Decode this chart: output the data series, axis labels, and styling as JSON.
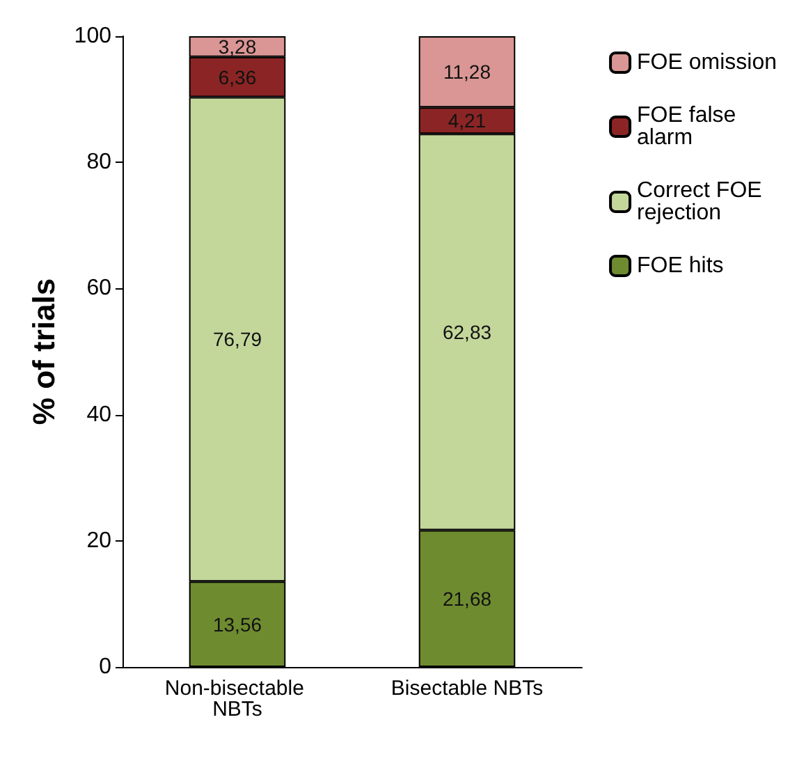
{
  "chart_data": {
    "type": "bar",
    "ylabel": "% of trials",
    "categories": [
      "Non-bisectable NBTs",
      "Bisectable NBTs"
    ],
    "stacked": true,
    "series": [
      {
        "name": "FOE hits",
        "color": "#6e8b30",
        "values": [
          13.56,
          21.68
        ],
        "value_labels": [
          "13,56",
          "21,68"
        ]
      },
      {
        "name": "Correct FOE rejection",
        "color": "#c4d79b",
        "values": [
          76.79,
          62.83
        ],
        "value_labels": [
          "76,79",
          "62,83"
        ]
      },
      {
        "name": "FOE false alarm",
        "color": "#8b2525",
        "values": [
          6.36,
          4.21
        ],
        "value_labels": [
          "6,36",
          "4,21"
        ]
      },
      {
        "name": "FOE omission",
        "color": "#d99694",
        "values": [
          3.28,
          11.28
        ],
        "value_labels": [
          "3,28",
          "11,28"
        ]
      }
    ],
    "ylim": [
      0,
      100
    ],
    "yticks": [
      0,
      20,
      40,
      60,
      80,
      100
    ],
    "grid": false,
    "legend": "right"
  }
}
